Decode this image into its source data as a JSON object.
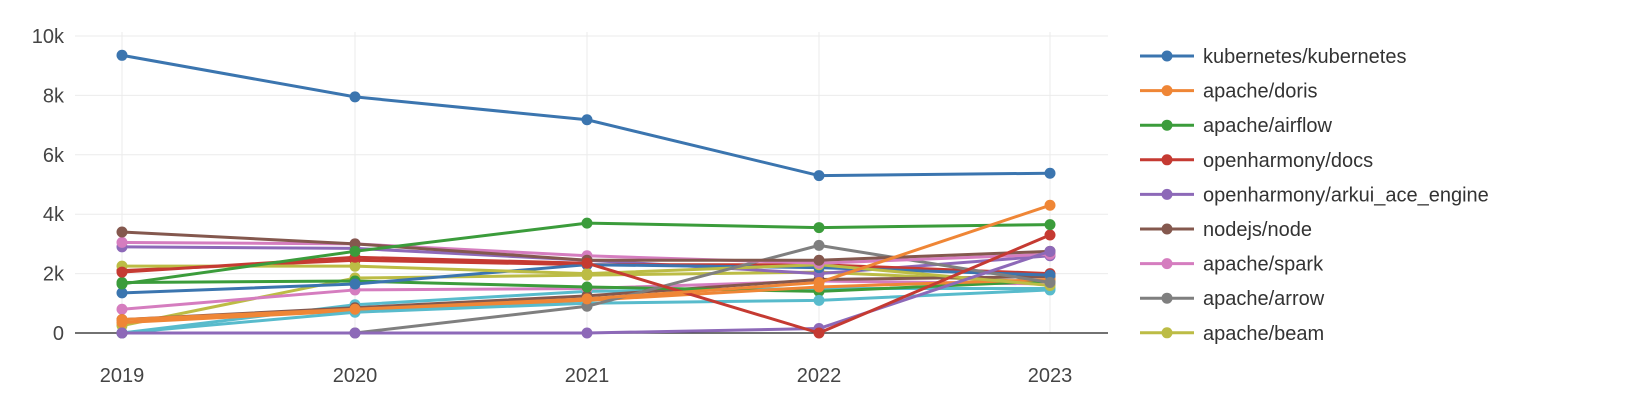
{
  "chart_data": {
    "type": "line",
    "title": "",
    "xlabel": "",
    "ylabel": "",
    "x": [
      2019,
      2020,
      2021,
      2022,
      2023
    ],
    "x_tick_labels": [
      "2019",
      "2020",
      "2021",
      "2022",
      "2023"
    ],
    "ylim": [
      0,
      10000
    ],
    "y_ticks": [
      0,
      2000,
      4000,
      6000,
      8000,
      10000
    ],
    "y_tick_labels": [
      "0",
      "2k",
      "4k",
      "6k",
      "8k",
      "10k"
    ],
    "grid": true,
    "legend_position": "right",
    "series": [
      {
        "name": "kubernetes/kubernetes",
        "color": "#3b75af",
        "values": [
          9350,
          7950,
          7180,
          5300,
          5380
        ],
        "in_legend": true
      },
      {
        "name": "apache/doris",
        "color": "#ef8636",
        "values": [
          450,
          800,
          1150,
          1700,
          4300
        ],
        "in_legend": true
      },
      {
        "name": "apache/airflow",
        "color": "#3b9c3b",
        "values": [
          1650,
          2750,
          3700,
          3550,
          3650
        ],
        "in_legend": true
      },
      {
        "name": "openharmony/docs",
        "color": "#c53a32",
        "values": [
          2050,
          2550,
          2350,
          0,
          3300
        ],
        "in_legend": true
      },
      {
        "name": "openharmony/arkui_ace_engine",
        "color": "#8d69b8",
        "values": [
          0,
          0,
          0,
          150,
          2750
        ],
        "in_legend": true
      },
      {
        "name": "nodejs/node",
        "color": "#84584e",
        "values": [
          3400,
          3000,
          2450,
          2450,
          2750
        ],
        "in_legend": true
      },
      {
        "name": "apache/spark",
        "color": "#d57dbf",
        "values": [
          3050,
          3000,
          2600,
          2350,
          2650
        ],
        "in_legend": true
      },
      {
        "name": "apache/arrow",
        "color": "#7f7f7f",
        "values": [
          0,
          0,
          900,
          2950,
          1700
        ],
        "in_legend": true
      },
      {
        "name": "apache/beam",
        "color": "#bcbc45",
        "values": [
          2250,
          2250,
          2000,
          2300,
          1600
        ],
        "in_legend": true
      },
      {
        "name": "",
        "color": "#58bbcc",
        "values": [
          0,
          700,
          1000,
          1100,
          1450
        ],
        "in_legend": false
      },
      {
        "name": "",
        "color": "#3b75af",
        "values": [
          1350,
          1650,
          2300,
          2200,
          1950
        ],
        "in_legend": false
      },
      {
        "name": "",
        "color": "#ef8636",
        "values": [
          350,
          750,
          1100,
          1550,
          1800
        ],
        "in_legend": false
      },
      {
        "name": "",
        "color": "#3b9c3b",
        "values": [
          1700,
          1750,
          1550,
          1400,
          1750
        ],
        "in_legend": false
      },
      {
        "name": "",
        "color": "#c53a32",
        "values": [
          2100,
          2450,
          2300,
          2300,
          2000
        ],
        "in_legend": false
      },
      {
        "name": "",
        "color": "#8d69b8",
        "values": [
          2900,
          2850,
          2450,
          2000,
          2600
        ],
        "in_legend": false
      },
      {
        "name": "",
        "color": "#84584e",
        "values": [
          450,
          850,
          1250,
          1800,
          1900
        ],
        "in_legend": false
      },
      {
        "name": "",
        "color": "#d57dbf",
        "values": [
          800,
          1450,
          1500,
          1750,
          1650
        ],
        "in_legend": false
      },
      {
        "name": "",
        "color": "#bcbc45",
        "values": [
          250,
          1850,
          1950,
          2050,
          1700
        ],
        "in_legend": false
      },
      {
        "name": "",
        "color": "#58bbcc",
        "values": [
          0,
          950,
          1400,
          1500,
          1500
        ],
        "in_legend": false
      }
    ]
  }
}
